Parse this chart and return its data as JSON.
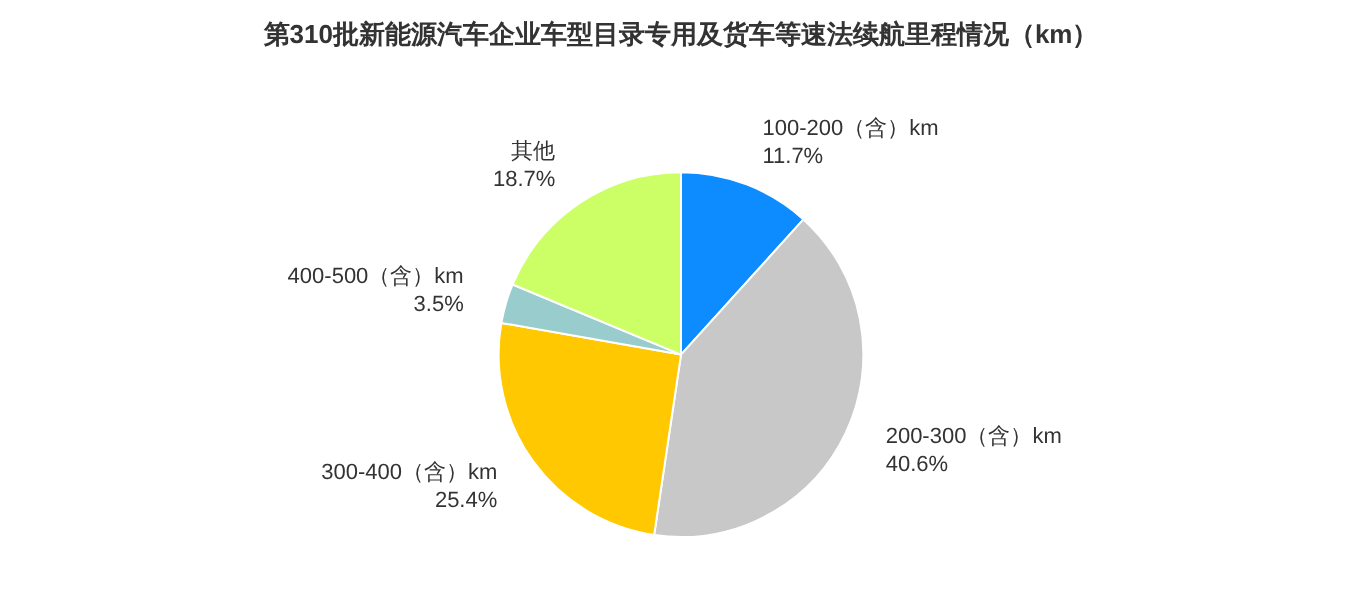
{
  "chart_data": {
    "type": "pie",
    "title": "第310批新能源汽车企业车型目录专用及货车等速法续航里程情况（km）",
    "categories": [
      "100-200（含）km",
      "200-300（含）km",
      "300-400（含）km",
      "400-500（含）km",
      "其他"
    ],
    "values": [
      11.7,
      40.6,
      25.4,
      3.5,
      18.7
    ],
    "value_labels": [
      "11.7%",
      "40.6%",
      "25.4%",
      "3.5%",
      "18.7%"
    ],
    "colors": [
      "#0d8cff",
      "#c8c8c8",
      "#ffc800",
      "#99cccc",
      "#ccff66"
    ],
    "legend": false
  }
}
